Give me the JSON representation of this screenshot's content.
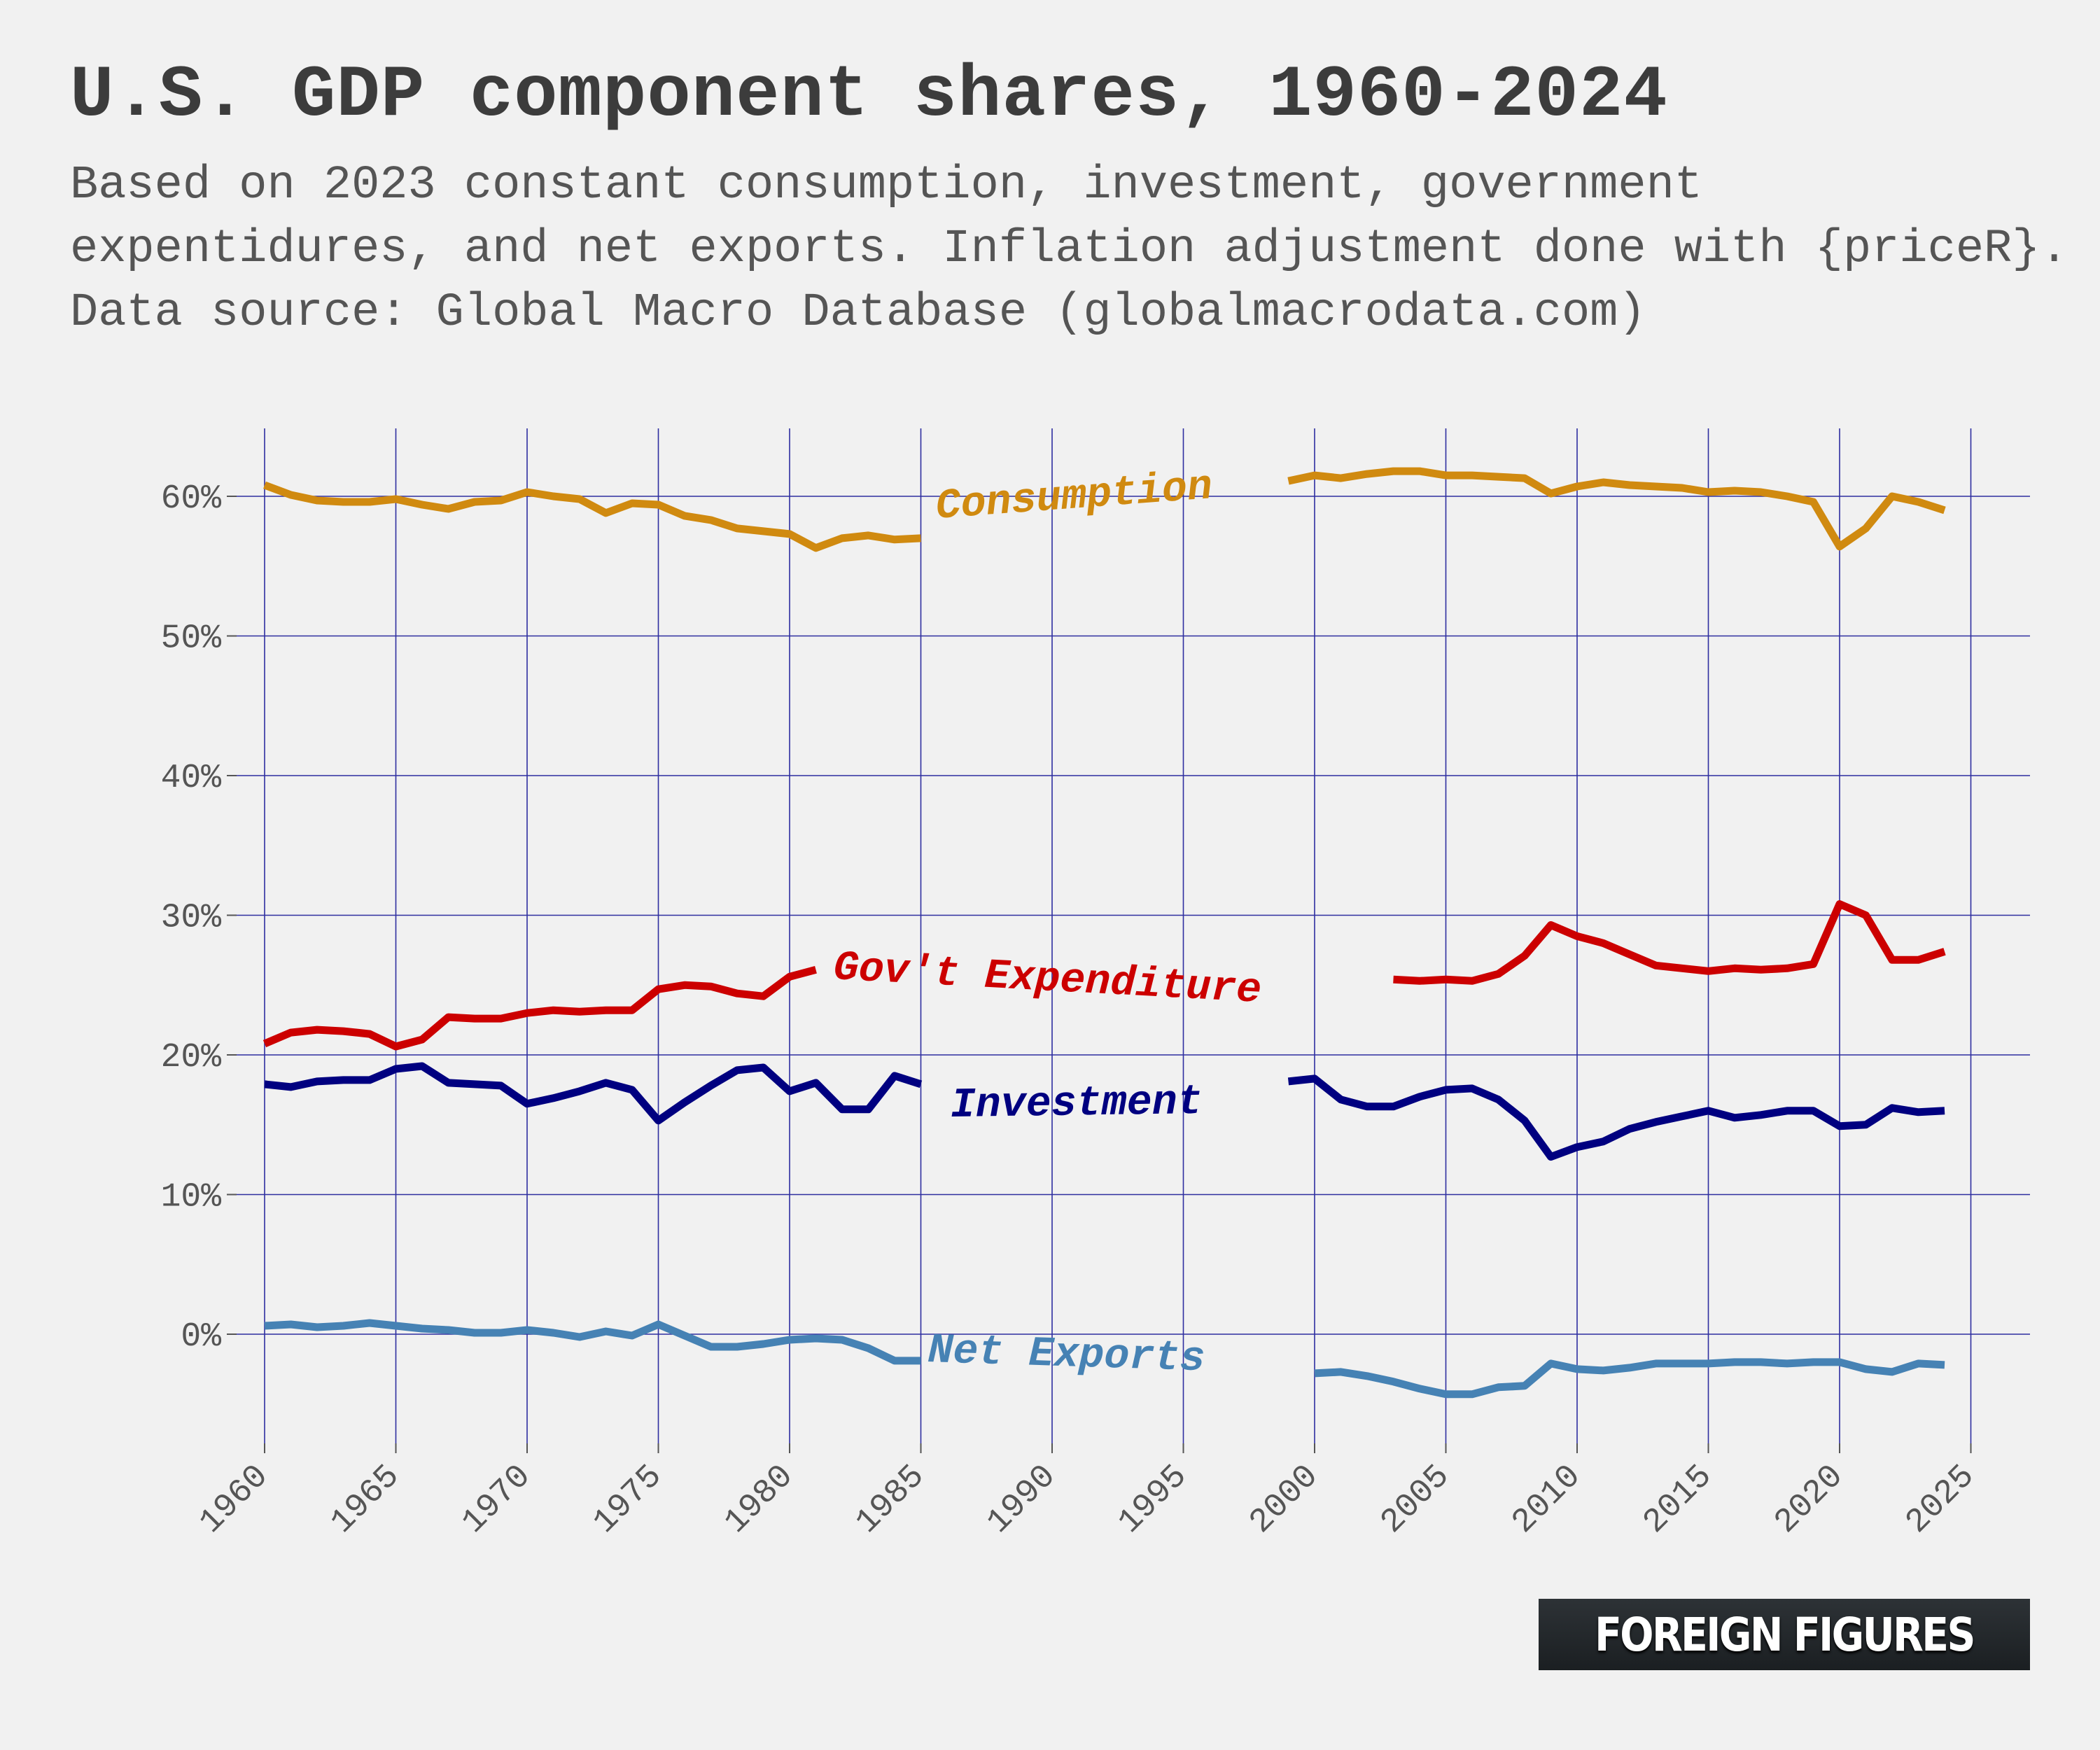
{
  "title": "U.S. GDP component shares, 1960-2024",
  "subtitle": "Based on 2023 constant consumption, investment, government expentidures, and net exports. Inflation adjustment done with {priceR}. Data source: Global Macro Database (globalmacrodata.com)",
  "brand": {
    "logo_text": "FOREIGN FIGURES"
  },
  "chart_data": {
    "type": "line",
    "grid": true,
    "legend": "direct labels on lines",
    "xlim": [
      1960,
      2025
    ],
    "ylim": [
      -7,
      65
    ],
    "x_ticks": [
      1960,
      1965,
      1970,
      1975,
      1980,
      1985,
      1990,
      1995,
      2000,
      2005,
      2010,
      2015,
      2020,
      2025
    ],
    "x_tick_labels": [
      "1960",
      "1965",
      "1970",
      "1975",
      "1980",
      "1985",
      "1990",
      "1995",
      "2000",
      "2005",
      "2010",
      "2015",
      "2020",
      "2025"
    ],
    "y_ticks": [
      0,
      10,
      20,
      30,
      40,
      50,
      60
    ],
    "y_tick_labels": [
      "0%",
      "10%",
      "20%",
      "30%",
      "40%",
      "50%",
      "60%"
    ],
    "series": [
      {
        "name": "Consumption",
        "color": "#d08a10",
        "segments": [
          {
            "x": [
              1960,
              1961,
              1962,
              1963,
              1964,
              1965,
              1966,
              1967,
              1968,
              1969,
              1970,
              1971,
              1972,
              1973,
              1974,
              1975,
              1976,
              1977,
              1978,
              1979,
              1980,
              1981,
              1982,
              1983,
              1984,
              1985
            ],
            "y": [
              60.8,
              60.1,
              59.7,
              59.6,
              59.6,
              59.8,
              59.4,
              59.1,
              59.6,
              59.7,
              60.3,
              60.0,
              59.8,
              58.8,
              59.5,
              59.4,
              58.6,
              58.3,
              57.7,
              57.5,
              57.3,
              56.3,
              57.0,
              57.2,
              56.9,
              57.0
            ]
          },
          {
            "x": [
              1999,
              2000,
              2001,
              2002,
              2003,
              2004,
              2005,
              2006,
              2007,
              2008,
              2009,
              2010,
              2011,
              2012,
              2013,
              2014,
              2015,
              2016,
              2017,
              2018,
              2019,
              2020,
              2021,
              2022,
              2023,
              2024
            ],
            "y": [
              61.1,
              61.5,
              61.3,
              61.6,
              61.8,
              61.8,
              61.5,
              61.5,
              61.4,
              61.3,
              60.2,
              60.7,
              61.0,
              60.8,
              60.7,
              60.6,
              60.3,
              60.4,
              60.3,
              60.0,
              59.6,
              56.4,
              57.7,
              60.0,
              59.6,
              59.0
            ]
          }
        ]
      },
      {
        "name": "Gov't Expenditure",
        "color": "#cc0000",
        "segments": [
          {
            "x": [
              1960,
              1961,
              1962,
              1963,
              1964,
              1965,
              1966,
              1967,
              1968,
              1969,
              1970,
              1971,
              1972,
              1973,
              1974,
              1975,
              1976,
              1977,
              1978,
              1979,
              1980,
              1981
            ],
            "y": [
              20.8,
              21.6,
              21.8,
              21.7,
              21.5,
              20.6,
              21.1,
              22.7,
              22.6,
              22.6,
              23.0,
              23.2,
              23.1,
              23.2,
              23.2,
              24.7,
              25.0,
              24.9,
              24.4,
              24.2,
              25.6,
              26.1
            ]
          },
          {
            "x": [
              2003,
              2004,
              2005,
              2006,
              2007,
              2008,
              2009,
              2010,
              2011,
              2012,
              2013,
              2014,
              2015,
              2016,
              2017,
              2018,
              2019,
              2020,
              2021,
              2022,
              2023,
              2024
            ],
            "y": [
              25.4,
              25.3,
              25.4,
              25.3,
              25.8,
              27.1,
              29.3,
              28.5,
              28.0,
              27.2,
              26.4,
              26.2,
              26.0,
              26.2,
              26.1,
              26.2,
              26.5,
              30.8,
              30.0,
              26.8,
              26.8,
              27.4
            ]
          }
        ]
      },
      {
        "name": "Investment",
        "color": "#000080",
        "segments": [
          {
            "x": [
              1960,
              1961,
              1962,
              1963,
              1964,
              1965,
              1966,
              1967,
              1968,
              1969,
              1970,
              1971,
              1972,
              1973,
              1974,
              1975,
              1976,
              1977,
              1978,
              1979,
              1980,
              1981,
              1982,
              1983,
              1984,
              1985
            ],
            "y": [
              17.9,
              17.7,
              18.1,
              18.2,
              18.2,
              19.0,
              19.2,
              18.0,
              17.9,
              17.8,
              16.5,
              16.9,
              17.4,
              18.0,
              17.5,
              15.3,
              16.6,
              17.8,
              18.9,
              19.1,
              17.4,
              18.0,
              16.1,
              16.1,
              18.5,
              17.9
            ]
          },
          {
            "x": [
              1999,
              2000,
              2001,
              2002,
              2003,
              2004,
              2005,
              2006,
              2007,
              2008,
              2009,
              2010,
              2011,
              2012,
              2013,
              2014,
              2015,
              2016,
              2017,
              2018,
              2019,
              2020,
              2021,
              2022,
              2023,
              2024
            ],
            "y": [
              18.1,
              18.3,
              16.8,
              16.3,
              16.3,
              17.0,
              17.5,
              17.6,
              16.8,
              15.3,
              12.7,
              13.4,
              13.8,
              14.7,
              15.2,
              15.6,
              16.0,
              15.5,
              15.7,
              16.0,
              16.0,
              14.9,
              15.0,
              16.2,
              15.9,
              16.0
            ]
          }
        ]
      },
      {
        "name": "Net Exports",
        "color": "#4682b4",
        "segments": [
          {
            "x": [
              1960,
              1961,
              1962,
              1963,
              1964,
              1965,
              1966,
              1967,
              1968,
              1969,
              1970,
              1971,
              1972,
              1973,
              1974,
              1975,
              1976,
              1977,
              1978,
              1979,
              1980,
              1981,
              1982,
              1983,
              1984,
              1985
            ],
            "y": [
              0.6,
              0.7,
              0.5,
              0.6,
              0.8,
              0.6,
              0.4,
              0.3,
              0.1,
              0.1,
              0.3,
              0.1,
              -0.2,
              0.2,
              -0.1,
              0.7,
              -0.1,
              -0.9,
              -0.9,
              -0.7,
              -0.4,
              -0.3,
              -0.4,
              -1.0,
              -1.9,
              -1.9
            ]
          },
          {
            "x": [
              2000,
              2001,
              2002,
              2003,
              2004,
              2005,
              2006,
              2007,
              2008,
              2009,
              2010,
              2011,
              2012,
              2013,
              2014,
              2015,
              2016,
              2017,
              2018,
              2019,
              2020,
              2021,
              2022,
              2023,
              2024
            ],
            "y": [
              -2.8,
              -2.7,
              -3.0,
              -3.4,
              -3.9,
              -4.3,
              -4.3,
              -3.8,
              -3.7,
              -2.1,
              -2.5,
              -2.6,
              -2.4,
              -2.1,
              -2.1,
              -2.1,
              -2.0,
              -2.0,
              -2.1,
              -2.0,
              -2.0,
              -2.5,
              -2.7,
              -2.1,
              -2.2
            ]
          }
        ]
      }
    ]
  }
}
